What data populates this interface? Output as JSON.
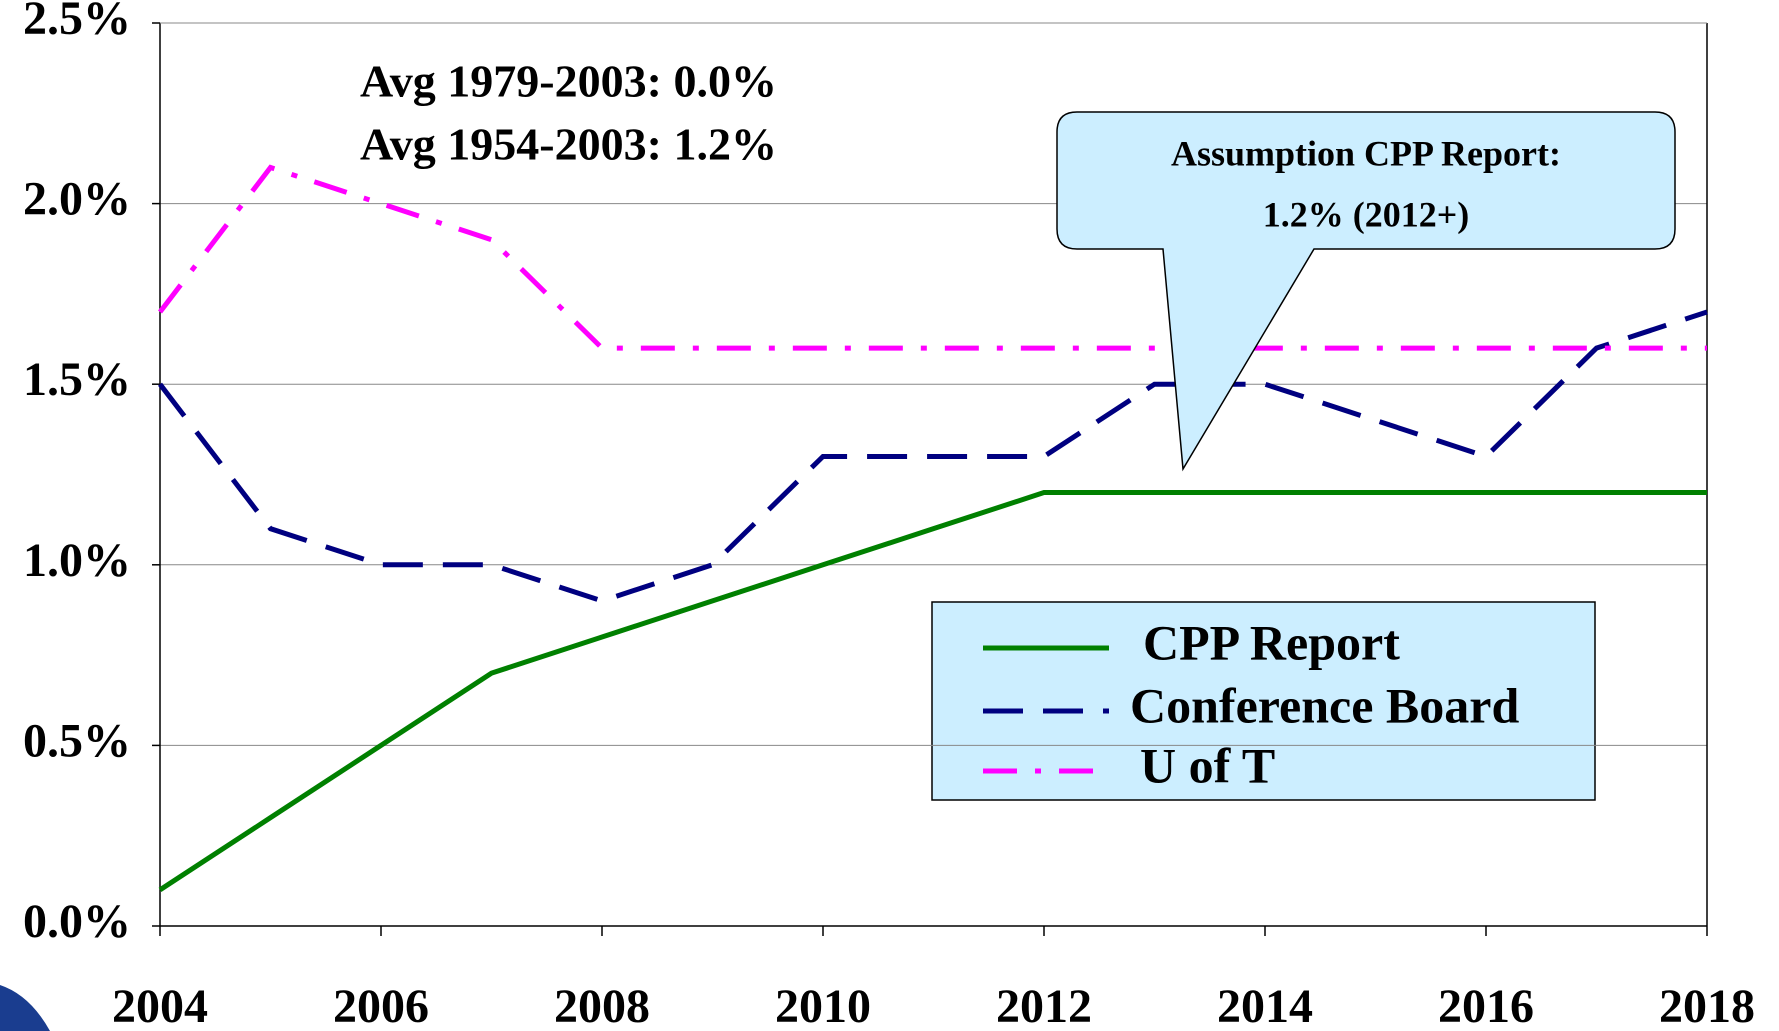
{
  "chart_data": {
    "type": "line",
    "x": [
      2004,
      2005,
      2006,
      2007,
      2008,
      2009,
      2010,
      2011,
      2012,
      2013,
      2014,
      2015,
      2016,
      2017,
      2018
    ],
    "series": [
      {
        "name": "CPP Report",
        "color": "#008000",
        "values": [
          0.1,
          0.3,
          0.5,
          0.7,
          0.8,
          0.9,
          1.0,
          1.1,
          1.2,
          1.2,
          1.2,
          1.2,
          1.2,
          1.2,
          1.2
        ]
      },
      {
        "name": "Conference Board",
        "color": "#000080",
        "values": [
          1.5,
          1.1,
          1.0,
          1.0,
          0.9,
          1.0,
          1.3,
          1.3,
          1.3,
          1.5,
          1.5,
          1.4,
          1.3,
          1.6,
          1.7
        ]
      },
      {
        "name": "U of T",
        "color": "#ff00ff",
        "values": [
          1.7,
          2.1,
          2.0,
          1.9,
          1.6,
          1.6,
          1.6,
          1.6,
          1.6,
          1.6,
          1.6,
          1.6,
          1.6,
          1.6,
          1.6
        ]
      }
    ],
    "xlim": [
      2004,
      2018
    ],
    "xticks": [
      2004,
      2006,
      2008,
      2010,
      2012,
      2014,
      2016,
      2018
    ],
    "ylim": [
      0,
      2.5
    ],
    "yticks": [
      {
        "value": 0,
        "label": "0.0%"
      },
      {
        "value": 0.5,
        "label": "0.5%"
      },
      {
        "value": 1.0,
        "label": "1.0%"
      },
      {
        "value": 1.5,
        "label": "1.5%"
      },
      {
        "value": 2.0,
        "label": "2.0%"
      },
      {
        "value": 2.5,
        "label": "2.5%"
      }
    ],
    "grid": true,
    "annotations": [
      "Avg 1979-2003: 0.0%",
      "Avg 1954-2003: 1.2%"
    ],
    "callout": [
      "Assumption CPP Report:",
      "1.2% (2012+)"
    ]
  }
}
